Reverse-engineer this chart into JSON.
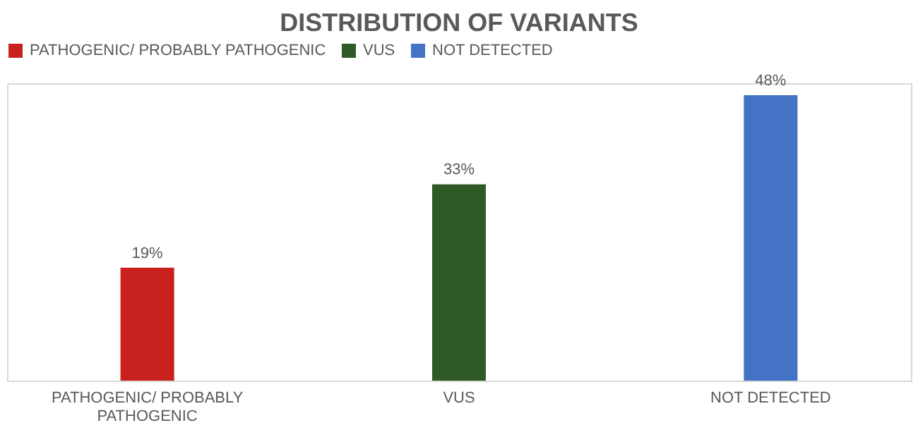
{
  "chart_data": {
    "type": "bar",
    "title": "DISTRIBUTION OF VARIANTS",
    "categories": [
      "PATHOGENIC/ PROBABLY PATHOGENIC",
      "VUS",
      "NOT DETECTED"
    ],
    "series": [
      {
        "name": "PATHOGENIC/ PROBABLY PATHOGENIC",
        "color": "#c9211e",
        "values": [
          19,
          null,
          null
        ],
        "value_labels": [
          "19%",
          null,
          null
        ]
      },
      {
        "name": "VUS",
        "color": "#2f5a27",
        "values": [
          null,
          33,
          null
        ],
        "value_labels": [
          null,
          "33%",
          null
        ]
      },
      {
        "name": "NOT DETECTED",
        "color": "#4472c4",
        "values": [
          null,
          null,
          48
        ],
        "value_labels": [
          null,
          null,
          "48%"
        ]
      }
    ],
    "legend": "top"
  }
}
